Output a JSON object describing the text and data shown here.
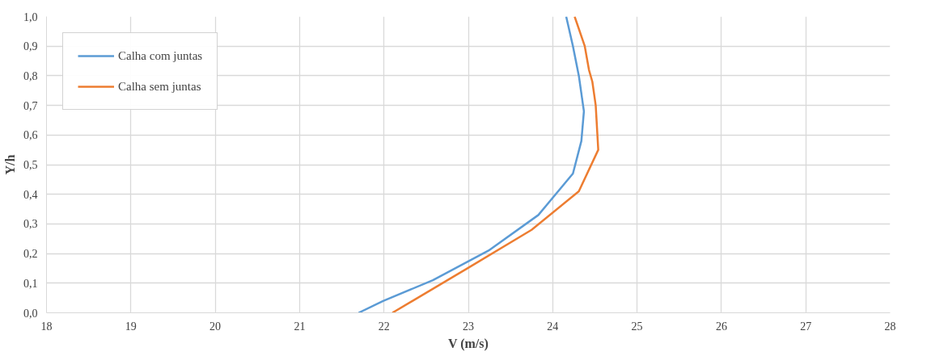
{
  "chart_data": {
    "type": "line",
    "xlabel": "V (m/s)",
    "ylabel": "Y/h",
    "xlim": [
      18,
      28
    ],
    "ylim": [
      0,
      1
    ],
    "xticks": [
      18,
      19,
      20,
      21,
      22,
      23,
      24,
      25,
      26,
      27,
      28
    ],
    "yticks": [
      {
        "value": 0,
        "label": "0,0"
      },
      {
        "value": 0.1,
        "label": "0,1"
      },
      {
        "value": 0.2,
        "label": "0,2"
      },
      {
        "value": 0.3,
        "label": "0,3"
      },
      {
        "value": 0.4,
        "label": "0,4"
      },
      {
        "value": 0.5,
        "label": "0,5"
      },
      {
        "value": 0.6,
        "label": "0,6"
      },
      {
        "value": 0.7,
        "label": "0,7"
      },
      {
        "value": 0.8,
        "label": "0,8"
      },
      {
        "value": 0.9,
        "label": "0,9"
      },
      {
        "value": 1,
        "label": "1,0"
      }
    ],
    "grid": true,
    "legend": "top left",
    "marker": "none",
    "line_style": "solid",
    "series": [
      {
        "name": "Calha com juntas",
        "color": "#5b9bd5",
        "x": [
          21.7,
          21.99,
          22.58,
          23.24,
          23.83,
          24.24,
          24.34,
          24.37,
          24.31,
          24.24,
          24.16
        ],
        "values": [
          0,
          0.04,
          0.11,
          0.21,
          0.33,
          0.47,
          0.58,
          0.68,
          0.8,
          0.9,
          1.0
        ]
      },
      {
        "name": "Calha sem juntas",
        "color": "#ed7d31",
        "x": [
          22.1,
          22.99,
          23.75,
          24.31,
          24.54,
          24.51,
          24.47,
          24.43,
          24.38,
          24.26
        ],
        "values": [
          0,
          0.15,
          0.28,
          0.41,
          0.55,
          0.7,
          0.78,
          0.82,
          0.9,
          1.0
        ]
      }
    ]
  }
}
